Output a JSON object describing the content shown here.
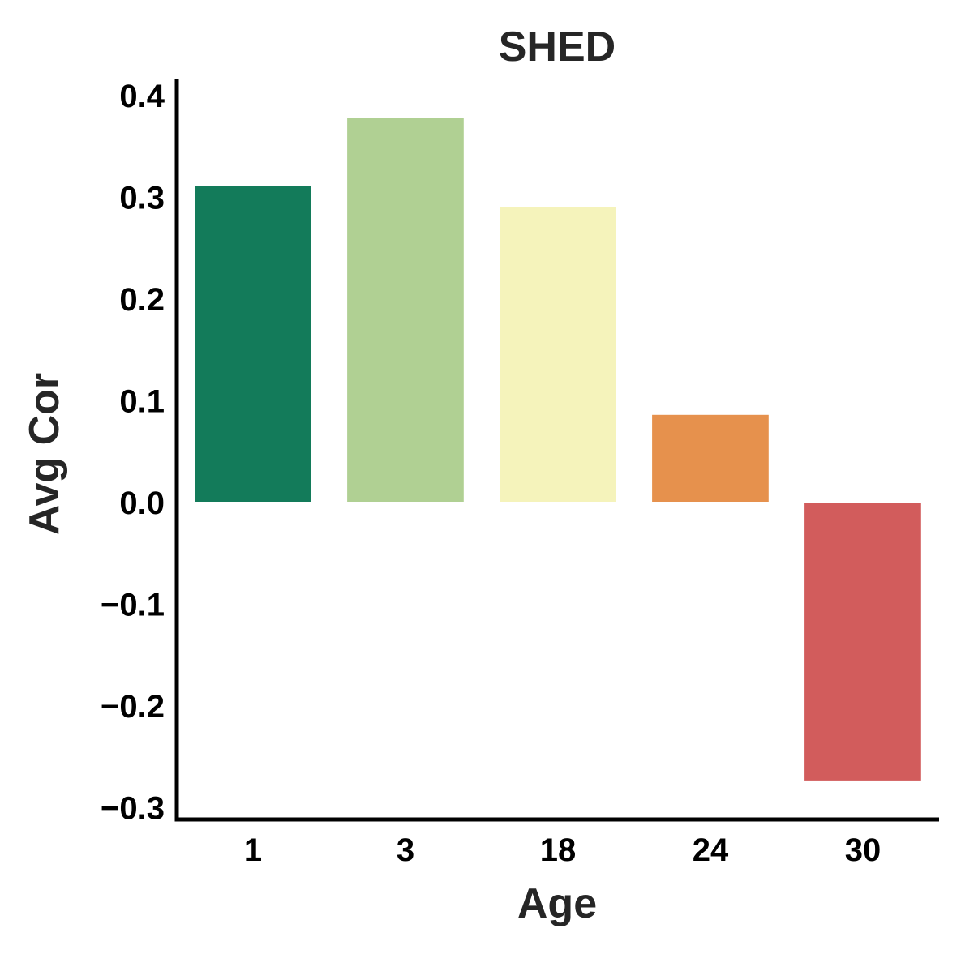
{
  "chart_data": {
    "type": "bar",
    "title": "SHED",
    "xlabel": "Age",
    "ylabel": "Avg Cor",
    "categories": [
      "1",
      "3",
      "18",
      "24",
      "30"
    ],
    "values": [
      0.312,
      0.379,
      0.291,
      0.087,
      -0.274
    ],
    "colors": [
      "#137b5a",
      "#b0d093",
      "#f5f3bb",
      "#e6914d",
      "#d25c5c"
    ],
    "ylim": [
      -0.31,
      0.42
    ],
    "yticks": [
      0.4,
      0.3,
      0.2,
      0.1,
      0.0,
      -0.1,
      -0.2,
      -0.3
    ],
    "ytick_labels": [
      "0.4",
      "0.3",
      "0.2",
      "0.1",
      "0.0",
      "−0.1",
      "−0.2",
      "−0.3"
    ],
    "grid": false,
    "legend": "none"
  }
}
